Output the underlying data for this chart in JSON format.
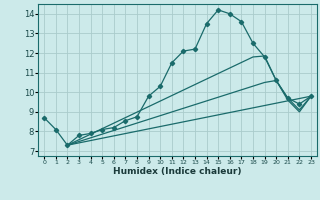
{
  "title": "",
  "xlabel": "Humidex (Indice chaleur)",
  "xlim": [
    -0.5,
    23.5
  ],
  "ylim": [
    6.75,
    14.5
  ],
  "xticks": [
    0,
    1,
    2,
    3,
    4,
    5,
    6,
    7,
    8,
    9,
    10,
    11,
    12,
    13,
    14,
    15,
    16,
    17,
    18,
    19,
    20,
    21,
    22,
    23
  ],
  "yticks": [
    7,
    8,
    9,
    10,
    11,
    12,
    13,
    14
  ],
  "bg_color": "#cceaea",
  "grid_color": "#aacccc",
  "line_color": "#1a6b6b",
  "lines": [
    {
      "x": [
        0,
        1,
        2,
        3,
        4,
        5,
        6,
        7,
        8,
        9,
        10,
        11,
        12,
        13,
        14,
        15,
        16,
        17,
        18,
        19,
        20,
        21,
        22,
        23
      ],
      "y": [
        8.7,
        8.1,
        7.3,
        7.8,
        7.9,
        8.1,
        8.2,
        8.55,
        8.75,
        9.8,
        10.3,
        11.5,
        12.1,
        12.2,
        13.5,
        14.2,
        14.0,
        13.6,
        12.5,
        11.8,
        10.6,
        9.7,
        9.4,
        9.8
      ],
      "has_markers": true
    },
    {
      "x": [
        2,
        23
      ],
      "y": [
        7.3,
        9.8
      ],
      "has_markers": false
    },
    {
      "x": [
        2,
        19,
        20,
        21,
        22,
        23
      ],
      "y": [
        7.3,
        10.5,
        10.6,
        9.7,
        9.1,
        9.8
      ],
      "has_markers": false
    },
    {
      "x": [
        2,
        18,
        19,
        20,
        21,
        22,
        23
      ],
      "y": [
        7.3,
        11.8,
        11.85,
        10.6,
        9.6,
        9.0,
        9.8
      ],
      "has_markers": false
    }
  ]
}
